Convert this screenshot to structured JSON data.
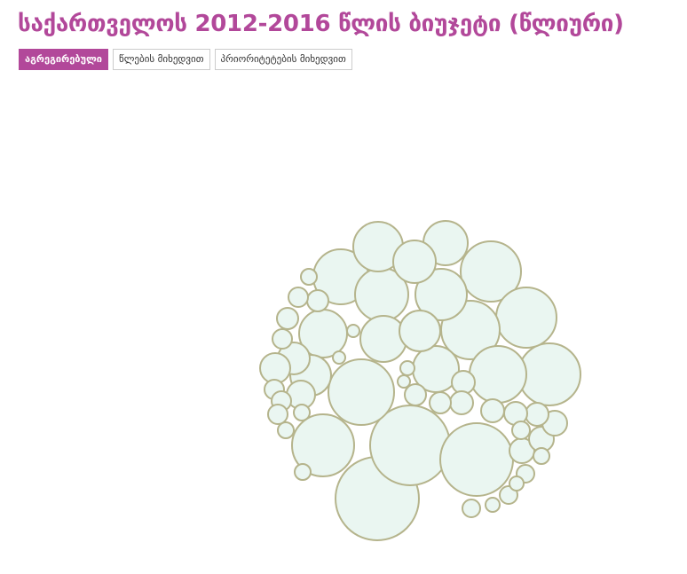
{
  "title": "საქართველოს 2012-2016 წლის ბიუჯეტი (წლიური)",
  "colors": {
    "accent": "#b2489a",
    "bubble_fill": "#eaf6f1",
    "bubble_stroke": "#b5b48c"
  },
  "tabs": [
    {
      "label": "აგრეგირებული",
      "active": true
    },
    {
      "label": "წლების მიხედვით",
      "active": false
    },
    {
      "label": "პრიორიტეტების მიხედვით",
      "active": false
    }
  ],
  "chart_data": {
    "type": "bubble",
    "title": "",
    "legend": "none",
    "grid": false,
    "relative_sizes": [
      47,
      45,
      41,
      37,
      35,
      35,
      34,
      34,
      33,
      32,
      31,
      30,
      29,
      28,
      27,
      26,
      26,
      25,
      24,
      23,
      23,
      18,
      17,
      16,
      14,
      14,
      14,
      13,
      13,
      13,
      13,
      13,
      12,
      12,
      12,
      12,
      11,
      11,
      11,
      11,
      11,
      10,
      10,
      10,
      10,
      9,
      9,
      9,
      9,
      9,
      8,
      8,
      8,
      7,
      7,
      7
    ]
  }
}
